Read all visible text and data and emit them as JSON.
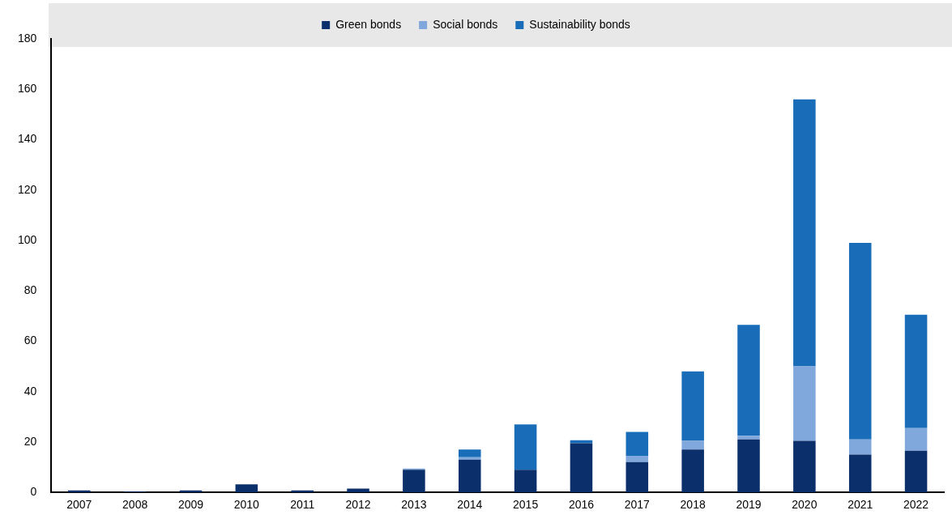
{
  "chart_data": {
    "type": "bar",
    "stacked": true,
    "categories": [
      "2007",
      "2008",
      "2009",
      "2010",
      "2011",
      "2012",
      "2013",
      "2014",
      "2015",
      "2016",
      "2017",
      "2018",
      "2019",
      "2020",
      "2021",
      "2022"
    ],
    "series": [
      {
        "name": "Green bonds",
        "color": "#0a2f6b",
        "values": [
          0.8,
          0.3,
          0.8,
          3.2,
          0.8,
          1.5,
          9,
          13,
          9,
          19.5,
          12,
          17,
          21,
          20.5,
          15,
          16.5
        ]
      },
      {
        "name": "Social bonds",
        "color": "#80a8dc",
        "values": [
          0,
          0,
          0,
          0,
          0,
          0,
          0.5,
          1,
          0,
          0,
          2.5,
          3.5,
          1.5,
          29.5,
          6,
          9
        ]
      },
      {
        "name": "Sustainability bonds",
        "color": "#196cb7",
        "values": [
          0,
          0,
          0,
          0,
          0,
          0,
          0,
          3,
          18,
          1.2,
          9.5,
          27.5,
          44,
          106,
          78,
          45
        ]
      }
    ],
    "ylim": [
      0,
      180
    ],
    "yticks": [
      0,
      20,
      40,
      60,
      80,
      100,
      120,
      140,
      160,
      180
    ],
    "grid": false,
    "legend": "top"
  }
}
